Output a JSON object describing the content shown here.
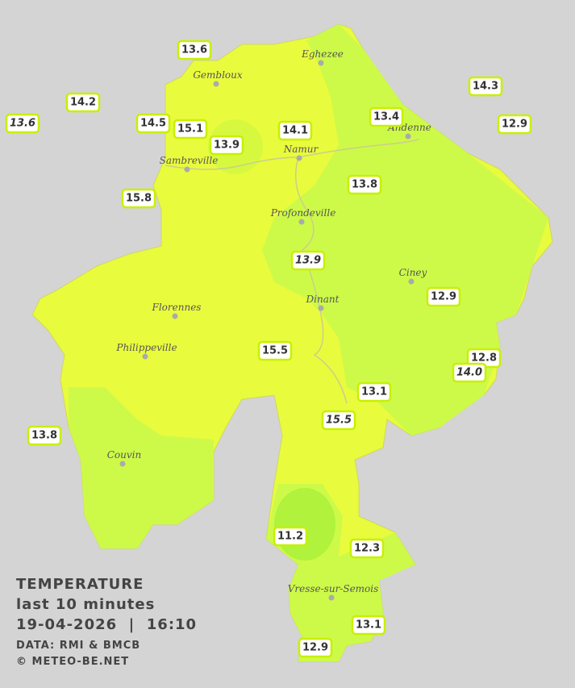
{
  "legend": {
    "title": "TEMPERATURE",
    "subtitle": "last 10 minutes",
    "datetime": "19-04-2026  |  16:10",
    "source": "DATA: RMI & BMCB",
    "copyright": "© METEO-BE.NET"
  },
  "cities": [
    "Eghezee",
    "Gembloux",
    "Andenne",
    "Namur",
    "Sambreville",
    "Profondeville",
    "Ciney",
    "Dinant",
    "Florennes",
    "Philippeville",
    "Couvin",
    "Vresse-sur-Semois"
  ],
  "stations": [
    {
      "value": "13.6"
    },
    {
      "value": "14.2"
    },
    {
      "value": "13.6",
      "italic": true
    },
    {
      "value": "14.5"
    },
    {
      "value": "15.1"
    },
    {
      "value": "13.9"
    },
    {
      "value": "14.1"
    },
    {
      "value": "13.4"
    },
    {
      "value": "14.3"
    },
    {
      "value": "12.9"
    },
    {
      "value": "15.8"
    },
    {
      "value": "13.8"
    },
    {
      "value": "13.9",
      "italic": true
    },
    {
      "value": "12.9"
    },
    {
      "value": "15.5"
    },
    {
      "value": "12.8"
    },
    {
      "value": "14.0",
      "italic": true
    },
    {
      "value": "13.1"
    },
    {
      "value": "15.5",
      "italic": true
    },
    {
      "value": "13.8"
    },
    {
      "value": "11.2"
    },
    {
      "value": "12.3"
    },
    {
      "value": "13.1"
    },
    {
      "value": "12.9"
    }
  ]
}
